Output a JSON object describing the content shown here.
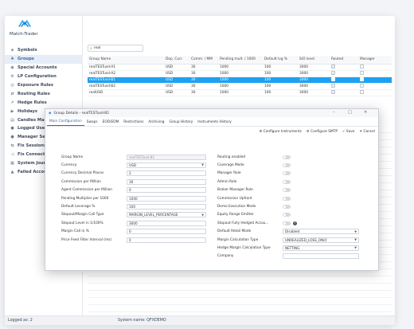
{
  "brand": {
    "logo_text": "Match-Trader"
  },
  "sidebar": {
    "items": [
      {
        "label": "Symbols",
        "icon": "symbols-icon"
      },
      {
        "label": "Groups",
        "icon": "groups-icon",
        "active": true
      },
      {
        "label": "Special Accounts",
        "icon": "accounts-icon"
      },
      {
        "label": "LP Configuration",
        "icon": "lp-icon"
      },
      {
        "label": "Exposure Rules",
        "icon": "exposure-icon"
      },
      {
        "label": "Routing Rules",
        "icon": "routing-icon"
      },
      {
        "label": "Hedge Rules",
        "icon": "hedge-icon"
      },
      {
        "label": "Holidays",
        "icon": "holidays-icon"
      },
      {
        "label": "Candles Maint",
        "icon": "candles-icon"
      },
      {
        "label": "Logged Users",
        "icon": "users-icon"
      },
      {
        "label": "Manager Sess",
        "icon": "manager-icon"
      },
      {
        "label": "Fix Sessions",
        "icon": "fix-icon"
      },
      {
        "label": "Fix Connector",
        "icon": "connector-icon"
      },
      {
        "label": "System Journa",
        "icon": "journal-icon"
      },
      {
        "label": "Failed Accoun",
        "icon": "warning-icon"
      }
    ]
  },
  "search": {
    "value": "real"
  },
  "grid": {
    "columns": [
      "Group Name",
      "Dep. Curr.",
      "Comm. / MM",
      "Pending mult. / 1000",
      "Default lvg %",
      "S/O level",
      "Routed",
      "Manager"
    ],
    "rows": [
      {
        "name": "realTESTusd-A1",
        "cur": "USD",
        "comm": "30",
        "pend": "1000",
        "lvg": "100",
        "so": "3000",
        "routed": true,
        "manager": false
      },
      {
        "name": "realTESTusd-A2",
        "cur": "USD",
        "comm": "30",
        "pend": "1000",
        "lvg": "100",
        "so": "3000",
        "routed": true,
        "manager": false
      },
      {
        "name": "realTESTusd-B1",
        "cur": "USD",
        "comm": "30",
        "pend": "1000",
        "lvg": "100",
        "so": "3000",
        "routed": false,
        "manager": false,
        "selected": true
      },
      {
        "name": "realTESTusd-B2",
        "cur": "USD",
        "comm": "30",
        "pend": "1000",
        "lvg": "100",
        "so": "3000",
        "routed": true,
        "manager": false
      },
      {
        "name": "realUSD",
        "cur": "USD",
        "comm": "30",
        "pend": "1000",
        "lvg": "100",
        "so": "3000",
        "routed": true,
        "manager": false
      }
    ]
  },
  "status": {
    "logged_as": "Logged as: 2",
    "system_name": "System name: QFXDEMO"
  },
  "dialog": {
    "title": "Group Details - realTESTusd-B1",
    "tabs": [
      "Main Configuration",
      "Swaps",
      "EOD/EOM",
      "Restrictions",
      "Archiving",
      "Group History",
      "Instruments History"
    ],
    "toolbar": {
      "configure_instruments": "Configure Instruments",
      "configure_smtp": "Configure SMTP",
      "save": "Save",
      "cancel": "Cancel"
    },
    "left_fields": [
      {
        "label": "Group Name",
        "value": "realTESTusd-B1",
        "disabled": true
      },
      {
        "label": "Currency",
        "value": "USD",
        "dropdown": true
      },
      {
        "label": "Currency Decimal Places",
        "value": "2"
      },
      {
        "label": "Commission per Million",
        "value": "30"
      },
      {
        "label": "Agent Commission per Million",
        "value": "0"
      },
      {
        "label": "Pending Multiplier per 1000",
        "value": "1000"
      },
      {
        "label": "Default Leverage %",
        "value": "100"
      },
      {
        "label": "Stopout/Margin Call Type",
        "value": "MARGIN_LEVEL_PERCENTAGE",
        "dropdown": true
      },
      {
        "label": "Stopout Level in 1/100%",
        "value": "3000"
      },
      {
        "label": "Margin Call in %",
        "value": "0"
      },
      {
        "label": "Price Feed Filter Interval (ms)",
        "value": "0"
      }
    ],
    "right_toggles": [
      "Routing enabled",
      "Coverage Mode",
      "Manager Role",
      "Admin Role",
      "Broker Manager Role",
      "Commission Upfront",
      "Demo Execution Mode",
      "Equity Range Emitter",
      "Stopout Fully Hedged Accou..."
    ],
    "right_selects": [
      {
        "label": "Default Retail Mode",
        "value": "Disabled"
      },
      {
        "label": "Margin Calculation Type",
        "value": "UNREALIZED_LOSS_ONLY"
      },
      {
        "label": "Hedge Margin Calculation Type",
        "value": "NETTING"
      },
      {
        "label": "Company",
        "value": ""
      }
    ]
  }
}
